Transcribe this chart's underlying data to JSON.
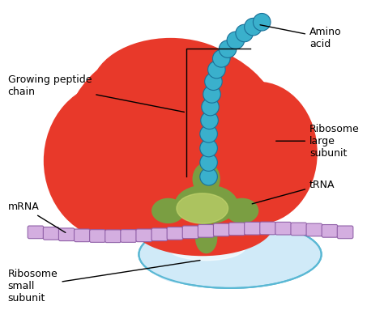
{
  "background_color": "#ffffff",
  "large_subunit_color": "#e8392a",
  "small_subunit_color": "#d0eaf8",
  "small_subunit_outline": "#5ab8d4",
  "trna_color_dark": "#7a9e42",
  "trna_color_light": "#c8d870",
  "mrna_bead_color": "#d4aee0",
  "mrna_bead_outline": "#9060a8",
  "peptide_bead_color": "#3ab0cc",
  "peptide_bead_outline": "#1a7098",
  "annotation_color": "#000000",
  "font_size": 9,
  "labels": {
    "growing_peptide_chain": "Growing peptide\nchain",
    "amino_acid": "Amino\nacid",
    "ribosome_large": "Ribosome\nlarge\nsubunit",
    "trna": "tRNA",
    "mrna": "mRNA",
    "ribosome_small": "Ribosome\nsmall\nsubunit"
  }
}
